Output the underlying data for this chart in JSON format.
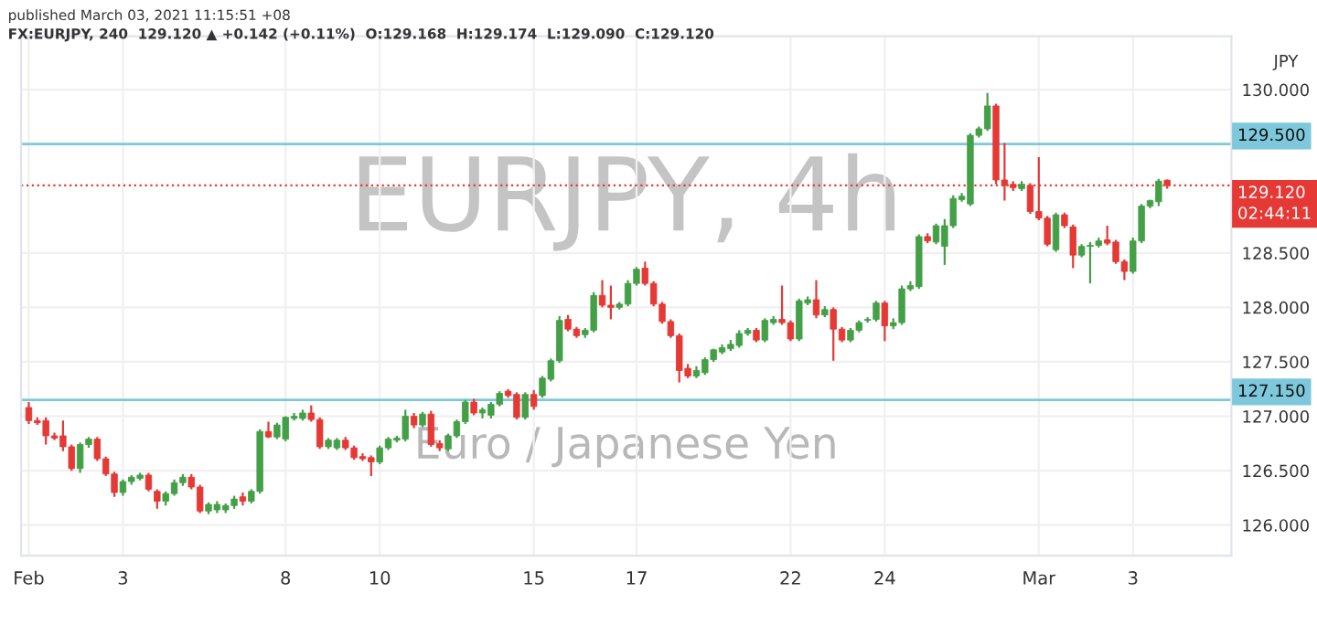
{
  "chart_data": {
    "type": "candlestick",
    "title": "FX:EURJPY, 240  129.120 ▲ +0.142 (+0.11%)  O:129.168  H:129.174  L:129.090  C:129.120",
    "subtitle": "published March 03, 2021 11:15:51 +08",
    "ylabel": "JPY",
    "annotations": [
      "EURJPY, 4h",
      "Euro / Japanese Yen",
      "02:44:11"
    ],
    "categories": [
      "Feb",
      null,
      null,
      null,
      null,
      null,
      null,
      null,
      null,
      null,
      null,
      "3",
      null,
      null,
      null,
      null,
      null,
      null,
      null,
      null,
      null,
      null,
      null,
      null,
      null,
      null,
      null,
      null,
      null,
      null,
      "8",
      null,
      null,
      null,
      null,
      null,
      null,
      null,
      null,
      null,
      null,
      "10",
      null,
      null,
      null,
      null,
      null,
      null,
      null,
      null,
      null,
      null,
      null,
      null,
      null,
      null,
      null,
      null,
      null,
      "15",
      null,
      null,
      null,
      null,
      null,
      null,
      null,
      null,
      null,
      null,
      null,
      "17",
      null,
      null,
      null,
      null,
      null,
      null,
      null,
      null,
      null,
      null,
      null,
      null,
      null,
      null,
      null,
      null,
      null,
      "22",
      null,
      null,
      null,
      null,
      null,
      null,
      null,
      null,
      null,
      null,
      "24",
      null,
      null,
      null,
      null,
      null,
      null,
      null,
      null,
      null,
      null,
      null,
      null,
      null,
      null,
      null,
      null,
      null,
      "Mar",
      null,
      null,
      null,
      null,
      null,
      null,
      null,
      null,
      null,
      null,
      "3",
      null,
      null,
      null,
      null
    ],
    "ohlc": [
      [
        127.08,
        127.13,
        126.93,
        126.96
      ],
      [
        126.96,
        126.99,
        126.92,
        126.94
      ],
      [
        126.96,
        126.99,
        126.74,
        126.82
      ],
      [
        126.82,
        126.85,
        126.78,
        126.8
      ],
      [
        126.82,
        126.96,
        126.68,
        126.72
      ],
      [
        126.72,
        126.74,
        126.5,
        126.52
      ],
      [
        126.52,
        126.76,
        126.48,
        126.74
      ],
      [
        126.74,
        126.81,
        126.71,
        126.79
      ],
      [
        126.79,
        126.81,
        126.59,
        126.61
      ],
      [
        126.61,
        126.63,
        126.45,
        126.47
      ],
      [
        126.47,
        126.49,
        126.26,
        126.3
      ],
      [
        126.3,
        126.42,
        126.27,
        126.4
      ],
      [
        126.4,
        126.46,
        126.37,
        126.44
      ],
      [
        126.43,
        126.48,
        126.41,
        126.46
      ],
      [
        126.46,
        126.48,
        126.31,
        126.33
      ],
      [
        126.31,
        126.33,
        126.15,
        126.22
      ],
      [
        126.22,
        126.31,
        126.18,
        126.29
      ],
      [
        126.29,
        126.42,
        126.27,
        126.39
      ],
      [
        126.39,
        126.47,
        126.36,
        126.44
      ],
      [
        126.44,
        126.47,
        126.33,
        126.35
      ],
      [
        126.35,
        126.37,
        126.11,
        126.13
      ],
      [
        126.13,
        126.21,
        126.1,
        126.19
      ],
      [
        126.14,
        126.22,
        126.11,
        126.19
      ],
      [
        126.14,
        126.2,
        126.11,
        126.18
      ],
      [
        126.18,
        126.27,
        126.15,
        126.24
      ],
      [
        126.26,
        126.3,
        126.18,
        126.22
      ],
      [
        126.22,
        126.33,
        126.2,
        126.31
      ],
      [
        126.31,
        126.88,
        126.29,
        126.86
      ],
      [
        126.86,
        126.95,
        126.8,
        126.81
      ],
      [
        126.81,
        126.94,
        126.79,
        126.92
      ],
      [
        126.79,
        127.0,
        126.77,
        126.99
      ],
      [
        126.98,
        127.03,
        126.96,
        127.0
      ],
      [
        126.98,
        127.06,
        126.96,
        127.03
      ],
      [
        127.03,
        127.1,
        126.95,
        126.97
      ],
      [
        126.97,
        126.99,
        126.7,
        126.72
      ],
      [
        126.72,
        126.8,
        126.7,
        126.78
      ],
      [
        126.71,
        126.8,
        126.69,
        126.78
      ],
      [
        126.78,
        126.81,
        126.69,
        126.71
      ],
      [
        126.71,
        126.73,
        126.6,
        126.62
      ],
      [
        126.63,
        126.66,
        126.59,
        126.61
      ],
      [
        126.62,
        126.64,
        126.45,
        126.58
      ],
      [
        126.58,
        126.73,
        126.56,
        126.71
      ],
      [
        126.71,
        126.81,
        126.69,
        126.79
      ],
      [
        126.78,
        126.82,
        126.76,
        126.8
      ],
      [
        126.79,
        127.06,
        126.77,
        127.0
      ],
      [
        127.0,
        127.03,
        126.89,
        126.92
      ],
      [
        126.92,
        127.04,
        126.9,
        127.02
      ],
      [
        127.02,
        127.05,
        126.72,
        126.74
      ],
      [
        126.75,
        126.78,
        126.68,
        126.71
      ],
      [
        126.7,
        126.84,
        126.68,
        126.82
      ],
      [
        126.82,
        126.97,
        126.8,
        126.95
      ],
      [
        126.95,
        127.15,
        126.93,
        127.13
      ],
      [
        127.13,
        127.16,
        127.01,
        127.03
      ],
      [
        127.03,
        127.08,
        126.98,
        127.06
      ],
      [
        127.01,
        127.13,
        126.98,
        127.11
      ],
      [
        127.11,
        127.23,
        127.09,
        127.21
      ],
      [
        127.23,
        127.25,
        127.17,
        127.19
      ],
      [
        127.2,
        127.22,
        126.97,
        126.99
      ],
      [
        126.99,
        127.22,
        126.97,
        127.2
      ],
      [
        127.2,
        127.24,
        127.06,
        127.09
      ],
      [
        127.19,
        127.37,
        127.17,
        127.35
      ],
      [
        127.34,
        127.53,
        127.32,
        127.51
      ],
      [
        127.51,
        127.92,
        127.49,
        127.88
      ],
      [
        127.89,
        127.93,
        127.78,
        127.8
      ],
      [
        127.8,
        127.82,
        127.72,
        127.74
      ],
      [
        127.75,
        127.81,
        127.72,
        127.79
      ],
      [
        127.79,
        128.14,
        127.77,
        128.11
      ],
      [
        128.11,
        128.25,
        128.0,
        128.02
      ],
      [
        128.02,
        128.2,
        127.89,
        128.0
      ],
      [
        128.0,
        128.05,
        127.98,
        128.03
      ],
      [
        128.03,
        128.25,
        128.01,
        128.22
      ],
      [
        128.22,
        128.37,
        128.2,
        128.35
      ],
      [
        128.36,
        128.42,
        128.2,
        128.22
      ],
      [
        128.22,
        128.24,
        128.01,
        128.03
      ],
      [
        128.03,
        128.05,
        127.85,
        127.87
      ],
      [
        127.87,
        127.89,
        127.72,
        127.74
      ],
      [
        127.74,
        127.76,
        127.31,
        127.42
      ],
      [
        127.44,
        127.48,
        127.35,
        127.37
      ],
      [
        127.37,
        127.46,
        127.35,
        127.42
      ],
      [
        127.4,
        127.54,
        127.38,
        127.52
      ],
      [
        127.52,
        127.62,
        127.5,
        127.61
      ],
      [
        127.59,
        127.66,
        127.57,
        127.63
      ],
      [
        127.62,
        127.7,
        127.6,
        127.66
      ],
      [
        127.65,
        127.79,
        127.63,
        127.76
      ],
      [
        127.76,
        127.81,
        127.74,
        127.79
      ],
      [
        127.79,
        127.81,
        127.68,
        127.7
      ],
      [
        127.7,
        127.9,
        127.68,
        127.88
      ],
      [
        127.86,
        127.92,
        127.84,
        127.89
      ],
      [
        127.89,
        128.2,
        127.84,
        127.86
      ],
      [
        127.86,
        127.88,
        127.69,
        127.71
      ],
      [
        127.71,
        128.08,
        127.69,
        128.06
      ],
      [
        128.04,
        128.1,
        128.02,
        128.07
      ],
      [
        128.07,
        128.25,
        127.9,
        127.93
      ],
      [
        127.93,
        128.01,
        127.91,
        127.98
      ],
      [
        127.98,
        128.0,
        127.51,
        127.8
      ],
      [
        127.8,
        127.82,
        127.68,
        127.7
      ],
      [
        127.7,
        127.81,
        127.68,
        127.79
      ],
      [
        127.79,
        127.88,
        127.77,
        127.86
      ],
      [
        127.88,
        127.91,
        127.86,
        127.89
      ],
      [
        127.89,
        128.06,
        127.87,
        128.04
      ],
      [
        128.04,
        128.06,
        127.69,
        127.83
      ],
      [
        127.83,
        127.9,
        127.8,
        127.86
      ],
      [
        127.86,
        128.2,
        127.84,
        128.17
      ],
      [
        128.17,
        128.24,
        128.15,
        128.2
      ],
      [
        128.19,
        128.67,
        128.17,
        128.65
      ],
      [
        128.65,
        128.68,
        128.59,
        128.61
      ],
      [
        128.6,
        128.77,
        128.58,
        128.75
      ],
      [
        128.56,
        128.81,
        128.39,
        128.75
      ],
      [
        128.75,
        129.03,
        128.73,
        129.0
      ],
      [
        128.99,
        129.05,
        128.97,
        129.02
      ],
      [
        128.95,
        129.6,
        128.93,
        129.58
      ],
      [
        129.58,
        129.66,
        129.56,
        129.64
      ],
      [
        129.64,
        129.97,
        129.62,
        129.85
      ],
      [
        129.85,
        129.87,
        129.13,
        129.17
      ],
      [
        129.17,
        129.51,
        128.98,
        129.12
      ],
      [
        129.13,
        129.16,
        129.07,
        129.1
      ],
      [
        129.09,
        129.16,
        129.07,
        129.13
      ],
      [
        129.12,
        129.14,
        128.86,
        128.88
      ],
      [
        128.88,
        129.38,
        128.8,
        128.82
      ],
      [
        128.82,
        128.84,
        128.56,
        128.58
      ],
      [
        128.53,
        128.87,
        128.51,
        128.85
      ],
      [
        128.85,
        128.87,
        128.73,
        128.75
      ],
      [
        128.74,
        128.76,
        128.36,
        128.48
      ],
      [
        128.48,
        128.58,
        128.46,
        128.56
      ],
      [
        128.56,
        128.6,
        128.22,
        128.57
      ],
      [
        128.57,
        128.64,
        128.55,
        128.61
      ],
      [
        128.62,
        128.75,
        128.57,
        128.59
      ],
      [
        128.6,
        128.62,
        128.4,
        128.42
      ],
      [
        128.42,
        128.44,
        128.25,
        128.33
      ],
      [
        128.33,
        128.64,
        128.31,
        128.61
      ],
      [
        128.61,
        128.95,
        128.59,
        128.93
      ],
      [
        128.93,
        128.99,
        128.91,
        128.98
      ],
      [
        128.97,
        129.18,
        128.93,
        129.16
      ],
      [
        129.168,
        129.174,
        129.09,
        129.12
      ]
    ],
    "ylim": [
      125.72,
      130.49
    ],
    "yticks": [
      {
        "value": 126,
        "label": "126.000"
      },
      {
        "value": 126.5,
        "label": "126.500"
      },
      {
        "value": 127,
        "label": "127.000"
      },
      {
        "value": 127.5,
        "label": "127.500"
      },
      {
        "value": 128,
        "label": "128.000"
      },
      {
        "value": 128.5,
        "label": "128.500"
      },
      {
        "value": 130,
        "label": "130.000"
      }
    ],
    "ref_lines": [
      {
        "axis": "y",
        "value": 129.5,
        "label": "129.500",
        "color": "#7ec8dc"
      },
      {
        "axis": "y",
        "value": 127.15,
        "label": "127.150",
        "color": "#7ec8dc"
      },
      {
        "axis": "y",
        "value": 129.12,
        "label": "129.120",
        "color": "#e53935",
        "line_style": "dotted"
      }
    ],
    "grid": true
  }
}
